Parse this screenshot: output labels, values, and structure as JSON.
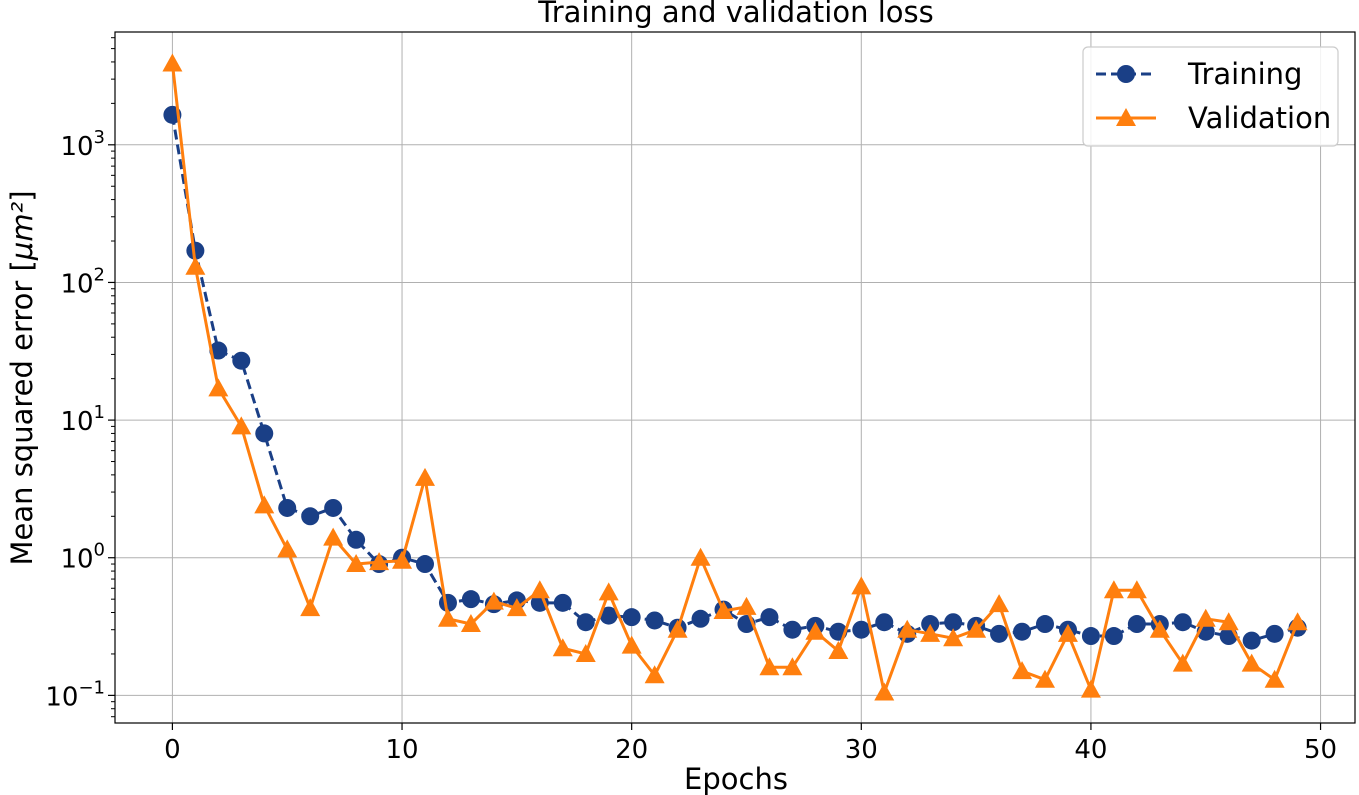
{
  "chart_data": {
    "type": "line",
    "title": "Training and validation loss",
    "xlabel": "Epochs",
    "ylabel": "Mean squared error [",
    "ylabel_unit": "μm²",
    "ylabel_close": "]",
    "yscale": "log",
    "xlim": [
      -2.5,
      51.5
    ],
    "ylim": [
      0.063,
      6600
    ],
    "grid": true,
    "legend_position": "upper-right",
    "x_ticks": [
      {
        "value": 0,
        "label": "0"
      },
      {
        "value": 10,
        "label": "10"
      },
      {
        "value": 20,
        "label": "20"
      },
      {
        "value": 30,
        "label": "30"
      },
      {
        "value": 40,
        "label": "40"
      },
      {
        "value": 50,
        "label": "50"
      }
    ],
    "y_ticks": [
      {
        "value": 0.1,
        "base": "10",
        "exp": "−1"
      },
      {
        "value": 1,
        "base": "10",
        "exp": "0"
      },
      {
        "value": 10,
        "base": "10",
        "exp": "1"
      },
      {
        "value": 100,
        "base": "10",
        "exp": "2"
      },
      {
        "value": 1000,
        "base": "10",
        "exp": "3"
      }
    ],
    "x": [
      0,
      1,
      2,
      3,
      4,
      5,
      6,
      7,
      8,
      9,
      10,
      11,
      12,
      13,
      14,
      15,
      16,
      17,
      18,
      19,
      20,
      21,
      22,
      23,
      24,
      25,
      26,
      27,
      28,
      29,
      30,
      31,
      32,
      33,
      34,
      35,
      36,
      37,
      38,
      39,
      40,
      41,
      42,
      43,
      44,
      45,
      46,
      47,
      48,
      49
    ],
    "series": [
      {
        "name": "Training",
        "color": "#1a3f86",
        "linestyle": "dashed",
        "marker": "circle",
        "values": [
          1650,
          170,
          32,
          27,
          8,
          2.3,
          2.0,
          2.3,
          1.35,
          0.9,
          1.0,
          0.9,
          0.47,
          0.5,
          0.46,
          0.49,
          0.47,
          0.47,
          0.34,
          0.38,
          0.37,
          0.35,
          0.31,
          0.36,
          0.42,
          0.33,
          0.37,
          0.3,
          0.32,
          0.29,
          0.3,
          0.34,
          0.28,
          0.33,
          0.34,
          0.32,
          0.28,
          0.29,
          0.33,
          0.3,
          0.27,
          0.27,
          0.33,
          0.33,
          0.34,
          0.29,
          0.27,
          0.25,
          0.28,
          0.31
        ]
      },
      {
        "name": "Validation",
        "color": "#ff7f0e",
        "linestyle": "solid",
        "marker": "triangle",
        "values": [
          3900,
          130,
          17,
          9,
          2.4,
          1.15,
          0.43,
          1.4,
          0.9,
          0.93,
          0.95,
          3.8,
          0.36,
          0.33,
          0.48,
          0.43,
          0.58,
          0.22,
          0.2,
          0.56,
          0.23,
          0.14,
          0.3,
          1.0,
          0.41,
          0.44,
          0.16,
          0.16,
          0.29,
          0.21,
          0.62,
          0.105,
          0.3,
          0.28,
          0.26,
          0.3,
          0.46,
          0.15,
          0.13,
          0.28,
          0.11,
          0.58,
          0.58,
          0.3,
          0.17,
          0.36,
          0.34,
          0.17,
          0.13,
          0.34
        ]
      }
    ]
  }
}
